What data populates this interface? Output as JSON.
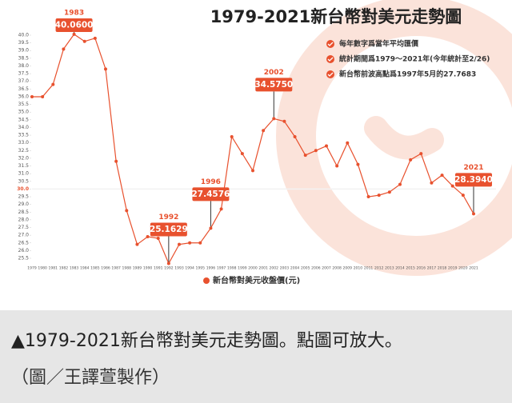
{
  "chart_data": {
    "type": "line",
    "title": "1979-2021新台幣對美元走勢圖",
    "notes": [
      "每年數字爲當年平均匯價",
      "統計期間爲1979～2021年(今年統計至2/26)",
      "新台幣前波高點爲1997年5月的27.7683"
    ],
    "categories": [
      "1979",
      "1980",
      "1981",
      "1982",
      "1983",
      "1984",
      "1985",
      "1986",
      "1987",
      "1988",
      "1989",
      "1990",
      "1991",
      "1992",
      "1993",
      "1994",
      "1995",
      "1996",
      "1997",
      "1998",
      "1999",
      "2000",
      "2001",
      "2002",
      "2003",
      "2004",
      "2005",
      "2006",
      "2007",
      "2008",
      "2009",
      "2010",
      "2011",
      "2012",
      "2013",
      "2014",
      "2015",
      "2016",
      "2017",
      "2018",
      "2019",
      "2020",
      "2021"
    ],
    "series": [
      {
        "name": "新台幣對美元收盤價(元)",
        "color": "#e8512e",
        "values": [
          36.0,
          36.0,
          36.8,
          39.1,
          40.06,
          39.6,
          39.8,
          37.8,
          31.8,
          28.6,
          26.4,
          26.9,
          26.8,
          25.1629,
          26.4,
          26.5,
          26.5,
          27.4576,
          28.7,
          33.4,
          32.3,
          31.2,
          33.8,
          34.575,
          34.4,
          33.4,
          32.2,
          32.5,
          32.8,
          31.5,
          33.0,
          31.6,
          29.5,
          29.6,
          29.8,
          30.3,
          31.9,
          32.3,
          30.4,
          30.9,
          30.2,
          29.6,
          28.394
        ],
        "value_labels": [
          null,
          null,
          null,
          null,
          "40.0600",
          null,
          null,
          null,
          null,
          null,
          null,
          null,
          null,
          "25.1629",
          null,
          null,
          null,
          "27.4576",
          null,
          null,
          null,
          null,
          null,
          "34.5750",
          null,
          null,
          null,
          null,
          null,
          null,
          null,
          null,
          null,
          null,
          null,
          null,
          null,
          null,
          null,
          null,
          null,
          null,
          "28.3940"
        ]
      }
    ],
    "ylim": [
      25.5,
      40.0
    ],
    "yticks": [
      {
        "value": 40,
        "label": "40.0"
      },
      39.5,
      {
        "value": 39,
        "label": "39.0"
      },
      38.5,
      {
        "value": 38,
        "label": "38.0"
      },
      37.5,
      {
        "value": 37,
        "label": "37.0"
      },
      36.5,
      {
        "value": 36,
        "label": "36.0"
      },
      35.5,
      {
        "value": 35,
        "label": "35.0"
      },
      34.5,
      {
        "value": 34,
        "label": "34.0"
      },
      33.5,
      {
        "value": 33,
        "label": "33.0"
      },
      32.5,
      {
        "value": 32,
        "label": "32.0"
      },
      31.5,
      {
        "value": 31,
        "label": "31.0"
      },
      30.5,
      {
        "value": 30,
        "label": "30.0"
      },
      29.5,
      {
        "value": 29,
        "label": "29.0"
      },
      28.5,
      {
        "value": 28,
        "label": "28.0"
      },
      27.5,
      {
        "value": 27,
        "label": "27.0"
      },
      26.5,
      {
        "value": 26,
        "label": "26.0"
      },
      25.5
    ],
    "highlight_y": 30,
    "grid": false
  },
  "caption": {
    "lines": [
      "▲1979-2021新台幣對美元走勢圖。點圖可放大。",
      "（圖／王譯萱製作）"
    ]
  }
}
